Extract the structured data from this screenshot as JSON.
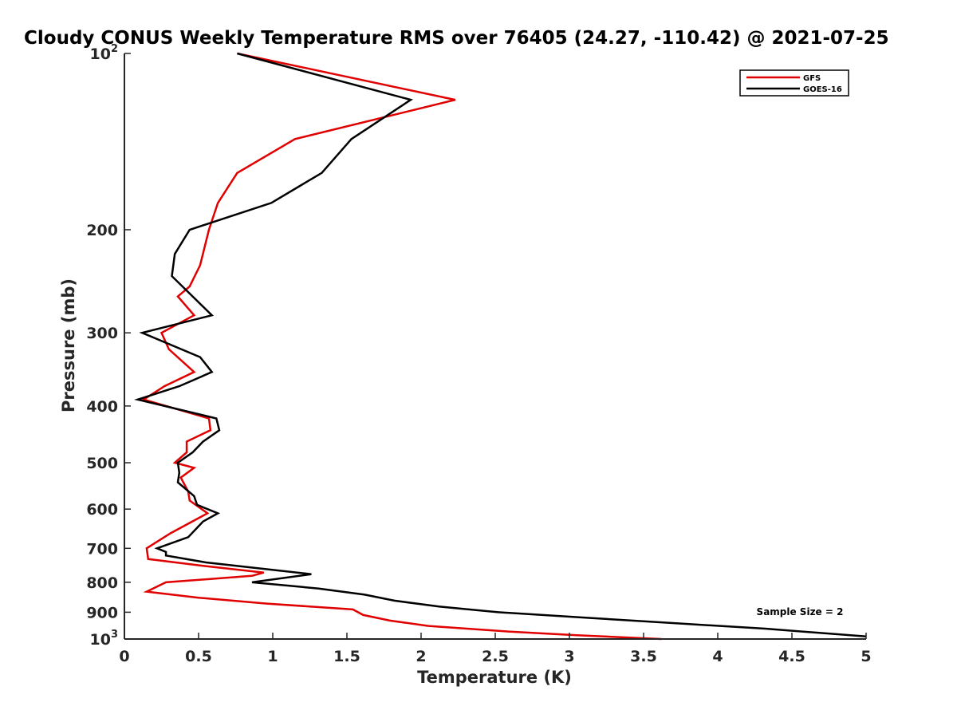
{
  "chart_data": {
    "type": "line",
    "title": "Cloudy CONUS Weekly Temperature RMS over 76405 (24.27, -110.42) @ 2021-07-25",
    "xlabel": "Temperature (K)",
    "ylabel": "Pressure (mb)",
    "xlim": [
      0,
      5
    ],
    "ylim": [
      100,
      1000
    ],
    "yscale": "log",
    "y_reversed": true,
    "x_ticks": [
      {
        "value": 0,
        "label": "0"
      },
      {
        "value": 0.5,
        "label": "0.5"
      },
      {
        "value": 1,
        "label": "1"
      },
      {
        "value": 1.5,
        "label": "1.5"
      },
      {
        "value": 2,
        "label": "2"
      },
      {
        "value": 2.5,
        "label": "2.5"
      },
      {
        "value": 3,
        "label": "3"
      },
      {
        "value": 3.5,
        "label": "3.5"
      },
      {
        "value": 4,
        "label": "4"
      },
      {
        "value": 4.5,
        "label": "4.5"
      },
      {
        "value": 5,
        "label": "5"
      }
    ],
    "y_ticks": [
      {
        "value": 100,
        "base": "10",
        "exp": "2"
      },
      {
        "value": 200,
        "base": "200",
        "exp": ""
      },
      {
        "value": 300,
        "base": "300",
        "exp": ""
      },
      {
        "value": 400,
        "base": "400",
        "exp": ""
      },
      {
        "value": 500,
        "base": "500",
        "exp": ""
      },
      {
        "value": 600,
        "base": "600",
        "exp": ""
      },
      {
        "value": 700,
        "base": "700",
        "exp": ""
      },
      {
        "value": 800,
        "base": "800",
        "exp": ""
      },
      {
        "value": 900,
        "base": "900",
        "exp": ""
      },
      {
        "value": 1000,
        "base": "10",
        "exp": "3"
      }
    ],
    "series": [
      {
        "name": "GFS",
        "color": "#e00000",
        "points": [
          [
            0.76,
            100
          ],
          [
            2.23,
            120
          ],
          [
            1.15,
            140
          ],
          [
            0.76,
            160
          ],
          [
            0.63,
            180
          ],
          [
            0.57,
            200
          ],
          [
            0.51,
            230
          ],
          [
            0.44,
            250
          ],
          [
            0.36,
            260
          ],
          [
            0.47,
            280
          ],
          [
            0.25,
            300
          ],
          [
            0.3,
            320
          ],
          [
            0.47,
            350
          ],
          [
            0.27,
            370
          ],
          [
            0.13,
            390
          ],
          [
            0.57,
            420
          ],
          [
            0.58,
            440
          ],
          [
            0.42,
            460
          ],
          [
            0.42,
            480
          ],
          [
            0.34,
            500
          ],
          [
            0.47,
            510
          ],
          [
            0.38,
            530
          ],
          [
            0.43,
            560
          ],
          [
            0.44,
            580
          ],
          [
            0.56,
            610
          ],
          [
            0.31,
            660
          ],
          [
            0.15,
            700
          ],
          [
            0.16,
            730
          ],
          [
            0.53,
            750
          ],
          [
            0.94,
            770
          ],
          [
            0.86,
            780
          ],
          [
            0.28,
            800
          ],
          [
            0.15,
            830
          ],
          [
            0.5,
            850
          ],
          [
            0.96,
            870
          ],
          [
            1.54,
            890
          ],
          [
            1.61,
            910
          ],
          [
            1.79,
            930
          ],
          [
            2.05,
            950
          ],
          [
            2.56,
            970
          ],
          [
            3.05,
            985
          ],
          [
            3.62,
            1000
          ]
        ]
      },
      {
        "name": "GOES-16",
        "color": "#000000",
        "points": [
          [
            0.76,
            100
          ],
          [
            1.93,
            120
          ],
          [
            1.53,
            140
          ],
          [
            1.33,
            160
          ],
          [
            0.99,
            180
          ],
          [
            0.44,
            200
          ],
          [
            0.34,
            220
          ],
          [
            0.32,
            240
          ],
          [
            0.59,
            280
          ],
          [
            0.12,
            300
          ],
          [
            0.51,
            330
          ],
          [
            0.59,
            350
          ],
          [
            0.37,
            370
          ],
          [
            0.09,
            390
          ],
          [
            0.62,
            420
          ],
          [
            0.64,
            440
          ],
          [
            0.53,
            460
          ],
          [
            0.46,
            480
          ],
          [
            0.36,
            500
          ],
          [
            0.37,
            520
          ],
          [
            0.36,
            540
          ],
          [
            0.47,
            570
          ],
          [
            0.49,
            590
          ],
          [
            0.63,
            610
          ],
          [
            0.53,
            630
          ],
          [
            0.43,
            670
          ],
          [
            0.22,
            700
          ],
          [
            0.28,
            710
          ],
          [
            0.28,
            720
          ],
          [
            0.55,
            740
          ],
          [
            0.96,
            760
          ],
          [
            1.26,
            775
          ],
          [
            0.86,
            800
          ],
          [
            1.31,
            820
          ],
          [
            1.62,
            840
          ],
          [
            1.82,
            860
          ],
          [
            2.12,
            880
          ],
          [
            2.52,
            900
          ],
          [
            3.12,
            920
          ],
          [
            3.72,
            940
          ],
          [
            4.32,
            960
          ],
          [
            5.0,
            990
          ]
        ]
      }
    ],
    "legend": {
      "position": "top-right",
      "entries": [
        "GFS",
        "GOES-16"
      ]
    },
    "annotation": "Sample Size = 2"
  }
}
